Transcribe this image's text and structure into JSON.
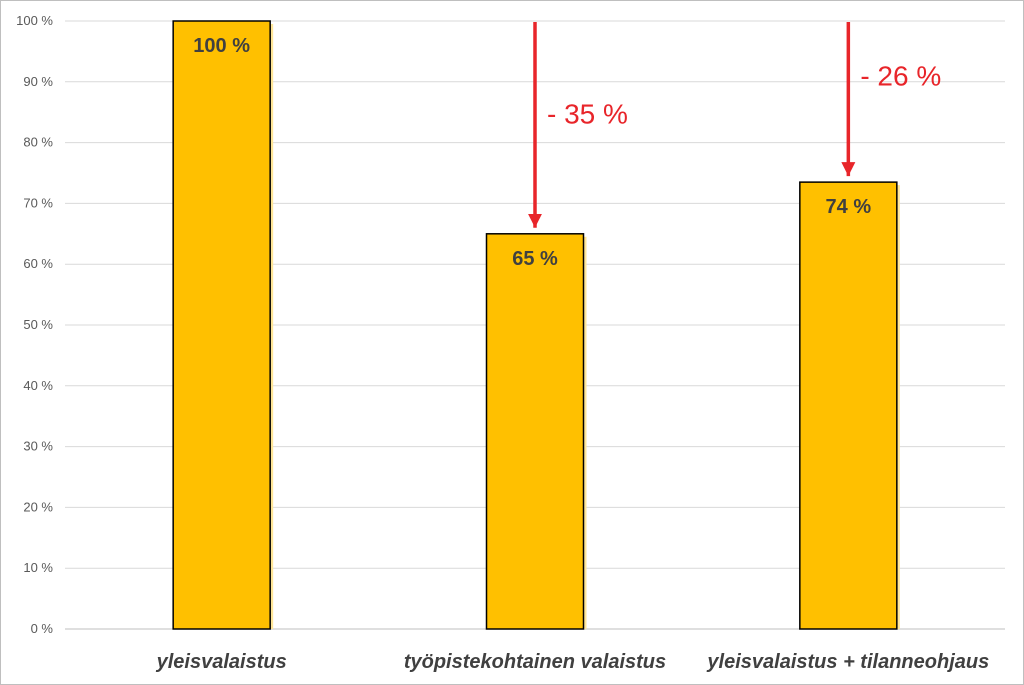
{
  "chart_data": {
    "type": "bar",
    "categories": [
      "yleisvalaistus",
      "työpistekohtainen valaistus",
      "yleisvalaistus + tilanneohjaus"
    ],
    "values": [
      100,
      65,
      74
    ],
    "display_values": [
      100,
      65,
      73.5
    ],
    "data_labels": [
      "100 %",
      "65 %",
      "74 %"
    ],
    "yticks": [
      "0 %",
      "10 %",
      "20 %",
      "30 %",
      "40 %",
      "50 %",
      "60 %",
      "70 %",
      "80 %",
      "90 %",
      "100 %"
    ],
    "ylim": [
      0,
      100
    ],
    "grid": true,
    "annotations": [
      {
        "category": "työpistekohtainen valaistus",
        "text": "- 35 %"
      },
      {
        "category": "yleisvalaistus + tilanneohjaus",
        "text": "- 26 %"
      }
    ],
    "colors": {
      "bar": "#ffc000",
      "bar_edge": "#000000",
      "bar_glow": "#ffe699",
      "arrow": "#e8252a",
      "grid": "#d9d9d9",
      "axis": "#bfbfbf"
    }
  }
}
